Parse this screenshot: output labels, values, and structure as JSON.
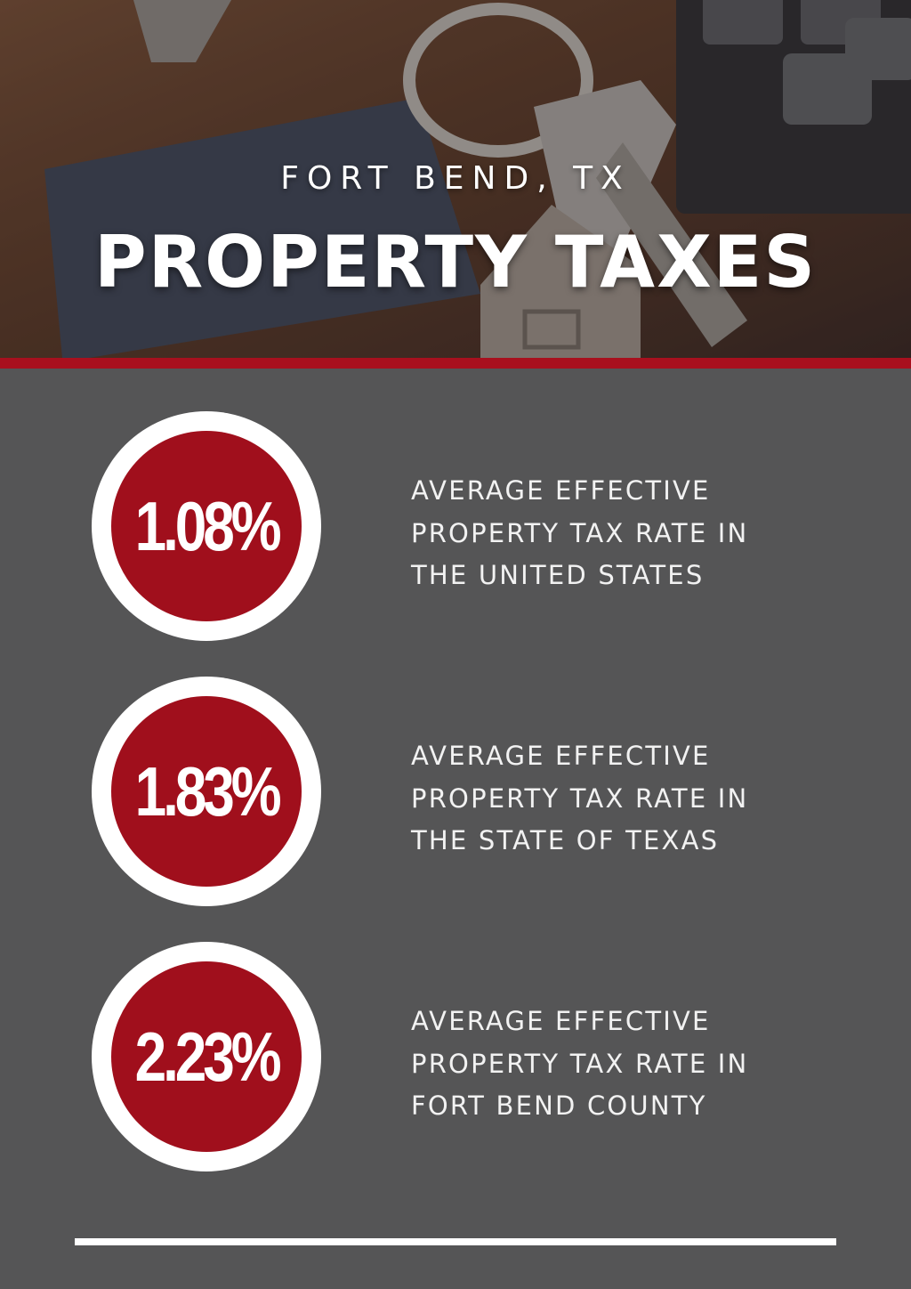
{
  "header": {
    "subtitle": "FORT BEND, TX",
    "title": "PROPERTY TAXES"
  },
  "stats": [
    {
      "value": "1.08%",
      "lines": [
        "AVERAGE EFFECTIVE",
        "PROPERTY TAX RATE IN",
        "THE UNITED STATES"
      ]
    },
    {
      "value": "1.83%",
      "lines": [
        "AVERAGE EFFECTIVE",
        "PROPERTY TAX RATE IN",
        "THE STATE OF TEXAS"
      ]
    },
    {
      "value": "2.23%",
      "lines": [
        "AVERAGE EFFECTIVE",
        "PROPERTY TAX RATE IN",
        "FORT BEND COUNTY"
      ]
    }
  ],
  "colors": {
    "accent_red": "#a00f1c",
    "panel_gray": "#555556",
    "text_white": "#ffffff"
  }
}
